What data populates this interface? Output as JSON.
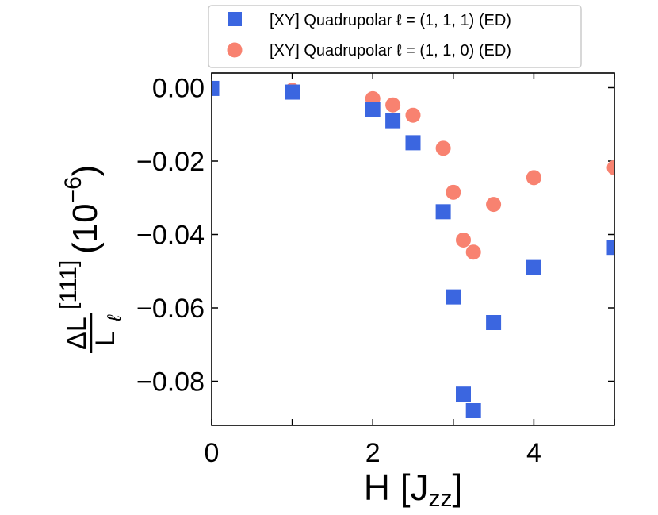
{
  "chart_data": {
    "type": "scatter",
    "xlabel": "H [J",
    "xlabel_sub": "zz",
    "xlabel_close": "]",
    "ylabel": {
      "numerator": "ΔL",
      "superscript": "[111]",
      "denominator": "L",
      "subscript": "ℓ",
      "scale": "(10",
      "scale_exp": "−6",
      "scale_close": ")"
    },
    "xlim": [
      0,
      5
    ],
    "ylim": [
      -0.092,
      0.004
    ],
    "x_ticks": [
      0,
      2,
      4
    ],
    "x_tick_labels": [
      "0",
      "2",
      "4"
    ],
    "x_minor_ticks": [
      1,
      3,
      5
    ],
    "y_ticks": [
      0.0,
      -0.02,
      -0.04,
      -0.06,
      -0.08
    ],
    "y_tick_labels": [
      "0.00",
      "−0.02",
      "−0.04",
      "−0.06",
      "−0.08"
    ],
    "legend_position": "top",
    "series": [
      {
        "name": "[XY] Quadrupolar ℓ = (1, 1, 1) (ED)",
        "marker": "square",
        "color": "#3b66e0",
        "x": [
          0,
          1,
          2,
          2.25,
          2.5,
          2.875,
          3.0,
          3.125,
          3.25,
          3.5,
          4.0,
          5.0
        ],
        "y": [
          -0.0002,
          -0.0012,
          -0.006,
          -0.009,
          -0.015,
          -0.0338,
          -0.057,
          -0.0835,
          -0.088,
          -0.064,
          -0.049,
          -0.0435
        ]
      },
      {
        "name": "[XY] Quadrupolar ℓ = (1, 1, 0) (ED)",
        "marker": "circle",
        "color": "#f88270",
        "x": [
          1,
          2,
          2.25,
          2.5,
          2.875,
          3.0,
          3.125,
          3.25,
          3.5,
          4.0,
          5.0
        ],
        "y": [
          -0.0007,
          -0.003,
          -0.0047,
          -0.0075,
          -0.0165,
          -0.0285,
          -0.0415,
          -0.0448,
          -0.0318,
          -0.0245,
          -0.0218
        ]
      }
    ]
  }
}
